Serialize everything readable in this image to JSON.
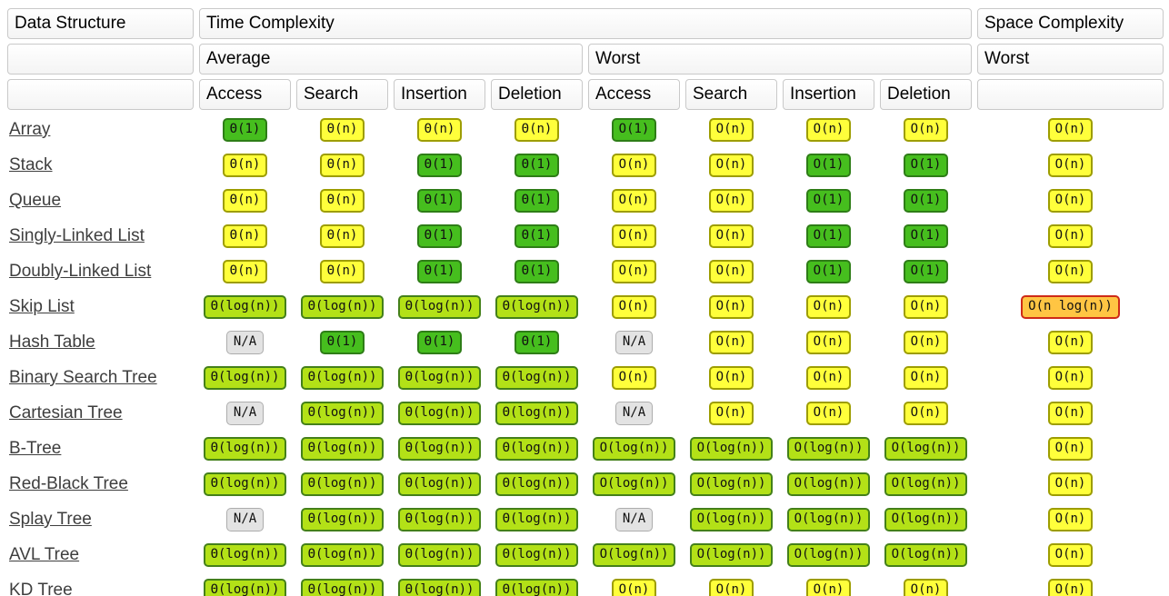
{
  "table": {
    "headers": {
      "data_structure": "Data Structure",
      "time_complexity": "Time Complexity",
      "space_complexity": "Space Complexity",
      "average": "Average",
      "worst": "Worst",
      "space_worst": "Worst",
      "operations": [
        "Access",
        "Search",
        "Insertion",
        "Deletion"
      ]
    },
    "rows": [
      {
        "name": "Array",
        "avg": [
          {
            "t": "Θ(1)",
            "c": "green"
          },
          {
            "t": "Θ(n)",
            "c": "yellow"
          },
          {
            "t": "Θ(n)",
            "c": "yellow"
          },
          {
            "t": "Θ(n)",
            "c": "yellow"
          }
        ],
        "worst": [
          {
            "t": "O(1)",
            "c": "green"
          },
          {
            "t": "O(n)",
            "c": "yellow"
          },
          {
            "t": "O(n)",
            "c": "yellow"
          },
          {
            "t": "O(n)",
            "c": "yellow"
          }
        ],
        "space": {
          "t": "O(n)",
          "c": "yellow"
        }
      },
      {
        "name": "Stack",
        "avg": [
          {
            "t": "Θ(n)",
            "c": "yellow"
          },
          {
            "t": "Θ(n)",
            "c": "yellow"
          },
          {
            "t": "Θ(1)",
            "c": "green"
          },
          {
            "t": "Θ(1)",
            "c": "green"
          }
        ],
        "worst": [
          {
            "t": "O(n)",
            "c": "yellow"
          },
          {
            "t": "O(n)",
            "c": "yellow"
          },
          {
            "t": "O(1)",
            "c": "green"
          },
          {
            "t": "O(1)",
            "c": "green"
          }
        ],
        "space": {
          "t": "O(n)",
          "c": "yellow"
        }
      },
      {
        "name": "Queue",
        "avg": [
          {
            "t": "Θ(n)",
            "c": "yellow"
          },
          {
            "t": "Θ(n)",
            "c": "yellow"
          },
          {
            "t": "Θ(1)",
            "c": "green"
          },
          {
            "t": "Θ(1)",
            "c": "green"
          }
        ],
        "worst": [
          {
            "t": "O(n)",
            "c": "yellow"
          },
          {
            "t": "O(n)",
            "c": "yellow"
          },
          {
            "t": "O(1)",
            "c": "green"
          },
          {
            "t": "O(1)",
            "c": "green"
          }
        ],
        "space": {
          "t": "O(n)",
          "c": "yellow"
        }
      },
      {
        "name": "Singly-Linked List",
        "avg": [
          {
            "t": "Θ(n)",
            "c": "yellow"
          },
          {
            "t": "Θ(n)",
            "c": "yellow"
          },
          {
            "t": "Θ(1)",
            "c": "green"
          },
          {
            "t": "Θ(1)",
            "c": "green"
          }
        ],
        "worst": [
          {
            "t": "O(n)",
            "c": "yellow"
          },
          {
            "t": "O(n)",
            "c": "yellow"
          },
          {
            "t": "O(1)",
            "c": "green"
          },
          {
            "t": "O(1)",
            "c": "green"
          }
        ],
        "space": {
          "t": "O(n)",
          "c": "yellow"
        }
      },
      {
        "name": "Doubly-Linked List",
        "avg": [
          {
            "t": "Θ(n)",
            "c": "yellow"
          },
          {
            "t": "Θ(n)",
            "c": "yellow"
          },
          {
            "t": "Θ(1)",
            "c": "green"
          },
          {
            "t": "Θ(1)",
            "c": "green"
          }
        ],
        "worst": [
          {
            "t": "O(n)",
            "c": "yellow"
          },
          {
            "t": "O(n)",
            "c": "yellow"
          },
          {
            "t": "O(1)",
            "c": "green"
          },
          {
            "t": "O(1)",
            "c": "green"
          }
        ],
        "space": {
          "t": "O(n)",
          "c": "yellow"
        }
      },
      {
        "name": "Skip List",
        "avg": [
          {
            "t": "Θ(log(n))",
            "c": "yellowgreen"
          },
          {
            "t": "Θ(log(n))",
            "c": "yellowgreen"
          },
          {
            "t": "Θ(log(n))",
            "c": "yellowgreen"
          },
          {
            "t": "Θ(log(n))",
            "c": "yellowgreen"
          }
        ],
        "worst": [
          {
            "t": "O(n)",
            "c": "yellow"
          },
          {
            "t": "O(n)",
            "c": "yellow"
          },
          {
            "t": "O(n)",
            "c": "yellow"
          },
          {
            "t": "O(n)",
            "c": "yellow"
          }
        ],
        "space": {
          "t": "O(n log(n))",
          "c": "orange"
        }
      },
      {
        "name": "Hash Table",
        "avg": [
          {
            "t": "N/A",
            "c": "gray"
          },
          {
            "t": "Θ(1)",
            "c": "green"
          },
          {
            "t": "Θ(1)",
            "c": "green"
          },
          {
            "t": "Θ(1)",
            "c": "green"
          }
        ],
        "worst": [
          {
            "t": "N/A",
            "c": "gray"
          },
          {
            "t": "O(n)",
            "c": "yellow"
          },
          {
            "t": "O(n)",
            "c": "yellow"
          },
          {
            "t": "O(n)",
            "c": "yellow"
          }
        ],
        "space": {
          "t": "O(n)",
          "c": "yellow"
        }
      },
      {
        "name": "Binary Search Tree",
        "avg": [
          {
            "t": "Θ(log(n))",
            "c": "yellowgreen"
          },
          {
            "t": "Θ(log(n))",
            "c": "yellowgreen"
          },
          {
            "t": "Θ(log(n))",
            "c": "yellowgreen"
          },
          {
            "t": "Θ(log(n))",
            "c": "yellowgreen"
          }
        ],
        "worst": [
          {
            "t": "O(n)",
            "c": "yellow"
          },
          {
            "t": "O(n)",
            "c": "yellow"
          },
          {
            "t": "O(n)",
            "c": "yellow"
          },
          {
            "t": "O(n)",
            "c": "yellow"
          }
        ],
        "space": {
          "t": "O(n)",
          "c": "yellow"
        }
      },
      {
        "name": "Cartesian Tree",
        "avg": [
          {
            "t": "N/A",
            "c": "gray"
          },
          {
            "t": "Θ(log(n))",
            "c": "yellowgreen"
          },
          {
            "t": "Θ(log(n))",
            "c": "yellowgreen"
          },
          {
            "t": "Θ(log(n))",
            "c": "yellowgreen"
          }
        ],
        "worst": [
          {
            "t": "N/A",
            "c": "gray"
          },
          {
            "t": "O(n)",
            "c": "yellow"
          },
          {
            "t": "O(n)",
            "c": "yellow"
          },
          {
            "t": "O(n)",
            "c": "yellow"
          }
        ],
        "space": {
          "t": "O(n)",
          "c": "yellow"
        }
      },
      {
        "name": "B-Tree",
        "avg": [
          {
            "t": "Θ(log(n))",
            "c": "yellowgreen"
          },
          {
            "t": "Θ(log(n))",
            "c": "yellowgreen"
          },
          {
            "t": "Θ(log(n))",
            "c": "yellowgreen"
          },
          {
            "t": "Θ(log(n))",
            "c": "yellowgreen"
          }
        ],
        "worst": [
          {
            "t": "O(log(n))",
            "c": "yellowgreen"
          },
          {
            "t": "O(log(n))",
            "c": "yellowgreen"
          },
          {
            "t": "O(log(n))",
            "c": "yellowgreen"
          },
          {
            "t": "O(log(n))",
            "c": "yellowgreen"
          }
        ],
        "space": {
          "t": "O(n)",
          "c": "yellow"
        }
      },
      {
        "name": "Red-Black Tree",
        "avg": [
          {
            "t": "Θ(log(n))",
            "c": "yellowgreen"
          },
          {
            "t": "Θ(log(n))",
            "c": "yellowgreen"
          },
          {
            "t": "Θ(log(n))",
            "c": "yellowgreen"
          },
          {
            "t": "Θ(log(n))",
            "c": "yellowgreen"
          }
        ],
        "worst": [
          {
            "t": "O(log(n))",
            "c": "yellowgreen"
          },
          {
            "t": "O(log(n))",
            "c": "yellowgreen"
          },
          {
            "t": "O(log(n))",
            "c": "yellowgreen"
          },
          {
            "t": "O(log(n))",
            "c": "yellowgreen"
          }
        ],
        "space": {
          "t": "O(n)",
          "c": "yellow"
        }
      },
      {
        "name": "Splay Tree",
        "avg": [
          {
            "t": "N/A",
            "c": "gray"
          },
          {
            "t": "Θ(log(n))",
            "c": "yellowgreen"
          },
          {
            "t": "Θ(log(n))",
            "c": "yellowgreen"
          },
          {
            "t": "Θ(log(n))",
            "c": "yellowgreen"
          }
        ],
        "worst": [
          {
            "t": "N/A",
            "c": "gray"
          },
          {
            "t": "O(log(n))",
            "c": "yellowgreen"
          },
          {
            "t": "O(log(n))",
            "c": "yellowgreen"
          },
          {
            "t": "O(log(n))",
            "c": "yellowgreen"
          }
        ],
        "space": {
          "t": "O(n)",
          "c": "yellow"
        }
      },
      {
        "name": "AVL Tree",
        "avg": [
          {
            "t": "Θ(log(n))",
            "c": "yellowgreen"
          },
          {
            "t": "Θ(log(n))",
            "c": "yellowgreen"
          },
          {
            "t": "Θ(log(n))",
            "c": "yellowgreen"
          },
          {
            "t": "Θ(log(n))",
            "c": "yellowgreen"
          }
        ],
        "worst": [
          {
            "t": "O(log(n))",
            "c": "yellowgreen"
          },
          {
            "t": "O(log(n))",
            "c": "yellowgreen"
          },
          {
            "t": "O(log(n))",
            "c": "yellowgreen"
          },
          {
            "t": "O(log(n))",
            "c": "yellowgreen"
          }
        ],
        "space": {
          "t": "O(n)",
          "c": "yellow"
        }
      },
      {
        "name": "KD Tree",
        "avg": [
          {
            "t": "Θ(log(n))",
            "c": "yellowgreen"
          },
          {
            "t": "Θ(log(n))",
            "c": "yellowgreen"
          },
          {
            "t": "Θ(log(n))",
            "c": "yellowgreen"
          },
          {
            "t": "Θ(log(n))",
            "c": "yellowgreen"
          }
        ],
        "worst": [
          {
            "t": "O(n)",
            "c": "yellow"
          },
          {
            "t": "O(n)",
            "c": "yellow"
          },
          {
            "t": "O(n)",
            "c": "yellow"
          },
          {
            "t": "O(n)",
            "c": "yellow"
          }
        ],
        "space": {
          "t": "O(n)",
          "c": "yellow"
        }
      }
    ]
  },
  "colors": {
    "levels": {
      "green": {
        "bg": "#46BE1E",
        "bd": "#2E7D17"
      },
      "yellow": {
        "bg": "#FFFF3B",
        "bd": "#9D9D00"
      },
      "yellowgreen": {
        "bg": "#B3E117",
        "bd": "#44801A"
      },
      "orange": {
        "bg": "#FFC543",
        "bd": "#CE2B17"
      },
      "gray": {
        "bg": "#E3E3E3",
        "bd": "#ADADAD"
      }
    }
  }
}
